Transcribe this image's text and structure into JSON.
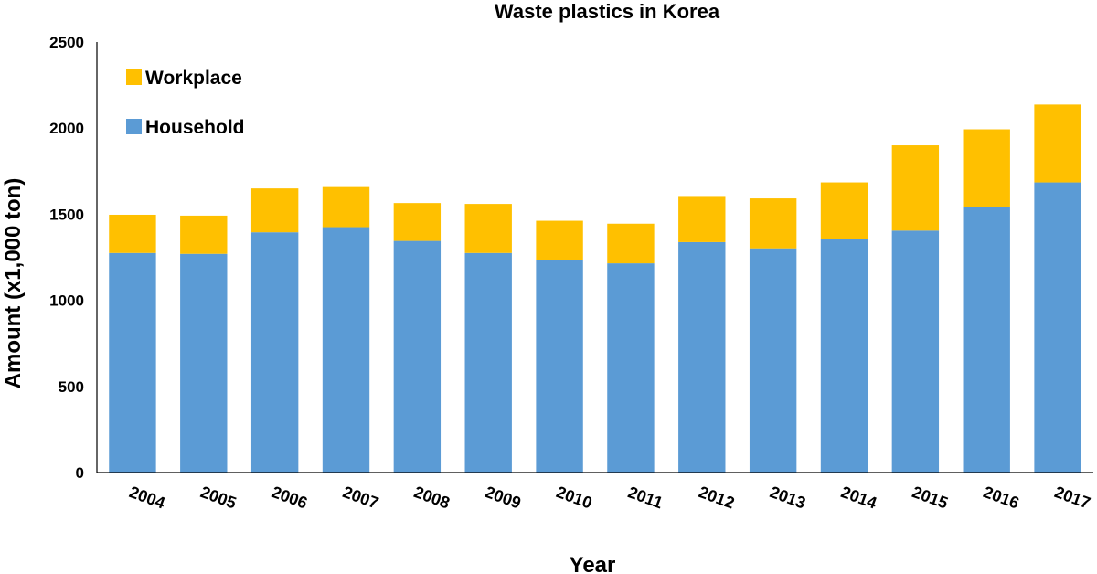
{
  "chart_data": {
    "type": "bar",
    "stacked": true,
    "title": "Waste plastics in Korea",
    "xlabel": "Year",
    "ylabel": "Amount (x1,000 ton)",
    "ylim": [
      0,
      2500
    ],
    "yticks": [
      0,
      500,
      1000,
      1500,
      2000,
      2500
    ],
    "grid": false,
    "legend_position": "top-left",
    "categories": [
      "2004",
      "2005",
      "2006",
      "2007",
      "2008",
      "2009",
      "2010",
      "2011",
      "2012",
      "2013",
      "2014",
      "2015",
      "2016",
      "2017"
    ],
    "series": [
      {
        "name": "Household",
        "color": "#5B9BD5",
        "values": [
          1275,
          1270,
          1395,
          1425,
          1345,
          1275,
          1232,
          1215,
          1338,
          1302,
          1355,
          1405,
          1540,
          1685
        ]
      },
      {
        "name": "Workplace",
        "color": "#FFC000",
        "values": [
          222,
          222,
          255,
          233,
          220,
          285,
          230,
          230,
          268,
          290,
          330,
          495,
          453,
          452
        ]
      }
    ],
    "legend": [
      {
        "name": "Workplace",
        "color": "#FFC000"
      },
      {
        "name": "Household",
        "color": "#5B9BD5"
      }
    ]
  }
}
